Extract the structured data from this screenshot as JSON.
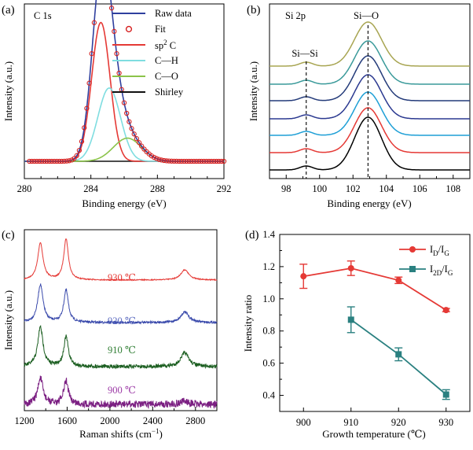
{
  "colors": {
    "raw": "#2f3f9e",
    "fit": "#d62020",
    "sp2": "#e53935",
    "ch": "#7fdde0",
    "co": "#8bc34a",
    "shirley": "#111111",
    "t930": "#e53935",
    "t920": "#3949ab",
    "t910": "#1b5e20",
    "t900": "#7b1f82",
    "ratio_dg": "#e53935",
    "ratio_2dg": "#2a8080",
    "xps_b": [
      "#a8a552",
      "#3a9a9a",
      "#243b7a",
      "#2b3990",
      "#1e9fd6",
      "#e53935",
      "#000000"
    ]
  },
  "chart_data": [
    {
      "panel": "(a)",
      "type": "line",
      "annotation": "C 1s",
      "xlabel": "Binding energy (eV)",
      "ylabel": "Intensity (a.u.)",
      "xlim": [
        280,
        292
      ],
      "xticks": [
        "280",
        "284",
        "288",
        "292"
      ],
      "legend": [
        "Raw data",
        "Fit",
        "sp² C",
        "C—H",
        "C—O",
        "Shirley"
      ],
      "legend_position": "top-right",
      "components": [
        {
          "name": "sp² C",
          "center": 284.6,
          "fwhm": 1.3,
          "height": 0.72
        },
        {
          "name": "C—H",
          "center": 285.1,
          "fwhm": 1.6,
          "height": 0.38
        },
        {
          "name": "C—O",
          "center": 286.2,
          "fwhm": 2.0,
          "height": 0.12
        }
      ],
      "baseline": 0.0
    },
    {
      "panel": "(b)",
      "type": "line",
      "annotation_peaks": [
        "Si 2p",
        "Si—O",
        "Si—Si"
      ],
      "xlabel": "Binding energy (eV)",
      "ylabel": "Intensity (a.u.)",
      "xlim": [
        97,
        109
      ],
      "xticks": [
        "98",
        "100",
        "102",
        "104",
        "106",
        "108"
      ],
      "peak_center": 102.9,
      "shoulder_center": 99.2,
      "reference_lines": [
        99.2,
        102.9
      ],
      "n_curves": 7
    },
    {
      "panel": "(c)",
      "type": "line",
      "xlabel": "Raman shifts (cm⁻¹)",
      "ylabel": "Intensity (a.u.)",
      "xlim": [
        1200,
        3000
      ],
      "xticks": [
        "1200",
        "1600",
        "2000",
        "2400",
        "2800"
      ],
      "series": [
        {
          "name": "930 ℃",
          "D": 0.9,
          "G": 1.0,
          "2D": 0.25
        },
        {
          "name": "920 ℃",
          "D": 1.0,
          "G": 0.85,
          "2D": 0.28
        },
        {
          "name": "910 ℃",
          "D": 1.0,
          "G": 0.75,
          "2D": 0.35
        },
        {
          "name": "900 ℃",
          "D": 1.0,
          "G": 0.9,
          "2D": 0.12
        }
      ],
      "peaks_cm": {
        "D": 1350,
        "G": 1590,
        "2D": 2700
      }
    },
    {
      "panel": "(d)",
      "type": "line",
      "xlabel": "Growth temperature (℃)",
      "ylabel": "Intensity ratio",
      "xlim": [
        895,
        935
      ],
      "ylim": [
        0.3,
        1.4
      ],
      "xticks": [
        "900",
        "910",
        "920",
        "930"
      ],
      "yticks": [
        "0.4",
        "0.6",
        "0.8",
        "1.0",
        "1.2",
        "1.4"
      ],
      "legend_position": "top-right",
      "series": [
        {
          "name": "ID/IG",
          "x": [
            900,
            910,
            920,
            930
          ],
          "y": [
            1.14,
            1.19,
            1.115,
            0.93
          ],
          "err": [
            0.075,
            0.045,
            0.02,
            0.01
          ]
        },
        {
          "name": "I2D/IG",
          "x": [
            910,
            920,
            930
          ],
          "y": [
            0.87,
            0.655,
            0.405
          ],
          "err": [
            0.08,
            0.04,
            0.03
          ]
        }
      ]
    }
  ],
  "labels": {
    "a": "(a)",
    "b": "(b)",
    "c": "(c)",
    "d": "(d)",
    "c1s": "C 1s",
    "si2p": "Si 2p",
    "sio": "Si—O",
    "sisi": "Si—Si",
    "legendA": [
      "Raw data",
      "Fit",
      "sp",
      "C—H",
      "C—O",
      "Shirley"
    ],
    "sp2_sup": "2",
    "sp2_tail": " C",
    "axA_x": "Binding energy (eV)",
    "axA_y": "Intensity (a.u.)",
    "axB_x": "Binding energy (eV)",
    "axB_y": "Intensity (a.u.)",
    "axC_x_main": "Raman shifts (cm",
    "axC_x_sup": "−1",
    "axC_x_tail": ")",
    "axC_y": "Intensity (a.u.)",
    "axD_x": "Growth temperature (℃)",
    "axD_y": "Intensity ratio",
    "ticksA": [
      "280",
      "284",
      "288",
      "292"
    ],
    "ticksB": [
      "98",
      "100",
      "102",
      "104",
      "106",
      "108"
    ],
    "ticksC": [
      "1200",
      "1600",
      "2000",
      "2400",
      "2800"
    ],
    "ticksDx": [
      "900",
      "910",
      "920",
      "930"
    ],
    "ticksDy": [
      "0.4",
      "0.6",
      "0.8",
      "1.0",
      "1.2",
      "1.4"
    ],
    "tempC": [
      "930 ℃",
      "920 ℃",
      "910 ℃",
      "900 ℃"
    ],
    "legD1_I": "I",
    "legD1_sub1": "D",
    "legD1_sl": "/I",
    "legD1_sub2": "G",
    "legD2_I": "I",
    "legD2_sub1": "2D",
    "legD2_sl": "/I",
    "legD2_sub2": "G"
  }
}
